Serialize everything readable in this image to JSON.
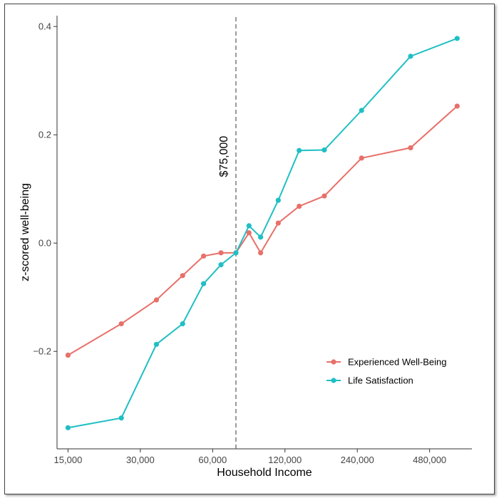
{
  "chart_data": {
    "type": "line",
    "xlabel": "Household Income",
    "ylabel": "z-scored well-being",
    "x_scale": "log2",
    "xlim": [
      13500,
      720000
    ],
    "ylim": [
      -0.38,
      0.42
    ],
    "x_ticks": [
      15000,
      30000,
      60000,
      120000,
      240000,
      480000
    ],
    "x_tick_labels": [
      "15,000",
      "30,000",
      "60,000",
      "120,000",
      "240,000",
      "480,000"
    ],
    "y_ticks": [
      -0.2,
      0.0,
      0.2,
      0.4
    ],
    "y_tick_labels": [
      "−0.2",
      "0.0",
      "0.2",
      "0.4"
    ],
    "grid": false,
    "legend_position": "bottom-right",
    "reference_line": {
      "x": 75000,
      "label": "$75,000",
      "style": "dashed",
      "color": "#666666"
    },
    "series": [
      {
        "name": "Experienced Well-Being",
        "color": "#e8706a",
        "points": [
          [
            15000,
            -0.207
          ],
          [
            25000,
            -0.149
          ],
          [
            35000,
            -0.105
          ],
          [
            45000,
            -0.06
          ],
          [
            55000,
            -0.024
          ],
          [
            65000,
            -0.018
          ],
          [
            75000,
            -0.018
          ],
          [
            85000,
            0.019
          ],
          [
            95000,
            -0.018
          ],
          [
            112500,
            0.037
          ],
          [
            137500,
            0.068
          ],
          [
            175000,
            0.087
          ],
          [
            250000,
            0.157
          ],
          [
            400000,
            0.176
          ],
          [
            625000,
            0.253
          ]
        ]
      },
      {
        "name": "Life Satisfaction",
        "color": "#1fbfc4",
        "points": [
          [
            15000,
            -0.341
          ],
          [
            25000,
            -0.323
          ],
          [
            35000,
            -0.187
          ],
          [
            45000,
            -0.149
          ],
          [
            55000,
            -0.075
          ],
          [
            65000,
            -0.04
          ],
          [
            75000,
            -0.018
          ],
          [
            85000,
            0.032
          ],
          [
            95000,
            0.011
          ],
          [
            112500,
            0.079
          ],
          [
            137500,
            0.171
          ],
          [
            175000,
            0.172
          ],
          [
            250000,
            0.245
          ],
          [
            400000,
            0.345
          ],
          [
            625000,
            0.378
          ]
        ]
      }
    ]
  }
}
